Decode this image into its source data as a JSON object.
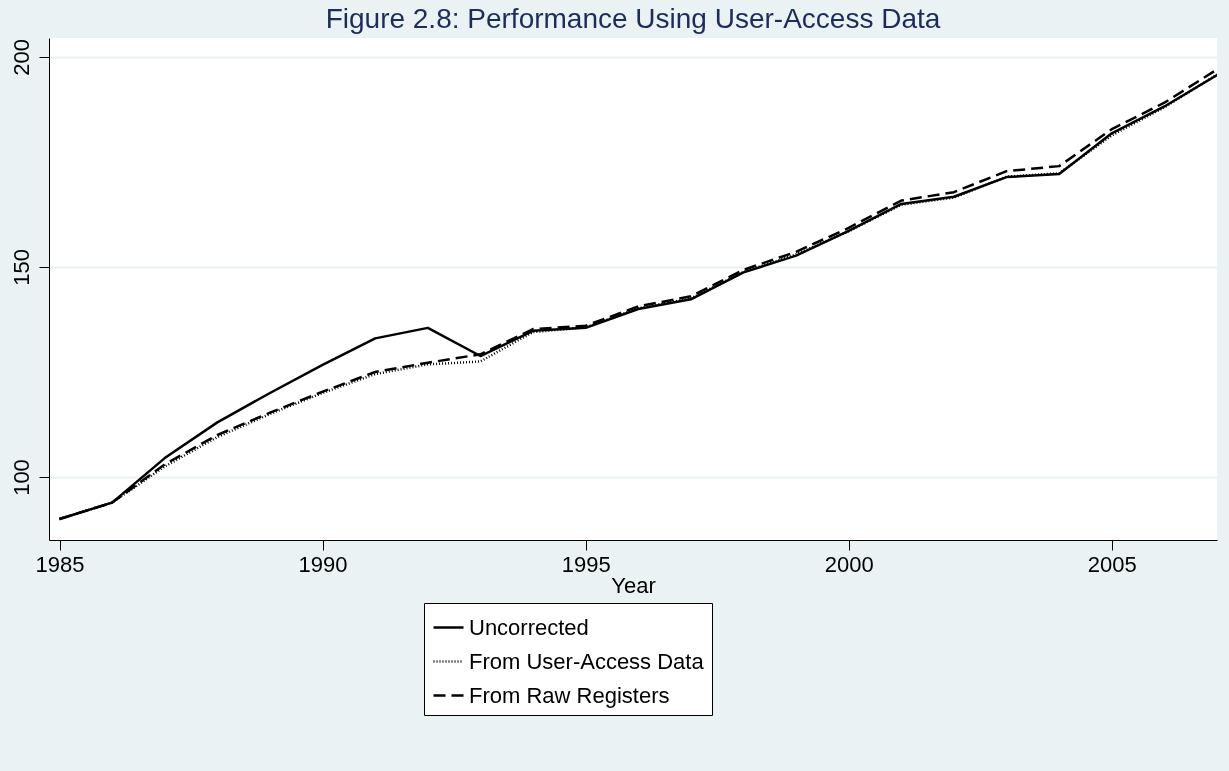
{
  "chart_data": {
    "type": "line",
    "title": "Figure 2.8: Performance Using User-Access Data",
    "xlabel": "Year",
    "x": [
      1985,
      1986,
      1987,
      1988,
      1989,
      1990,
      1991,
      1992,
      1993,
      1994,
      1995,
      1996,
      1997,
      1998,
      1999,
      2000,
      2001,
      2002,
      2003,
      2004,
      2005,
      2006,
      2007
    ],
    "series": [
      {
        "name": "Uncorrected",
        "color": "#000000",
        "line_style": "solid",
        "values": [
          90,
          93.9,
          104.5,
          113,
          120,
          126.7,
          133,
          135.5,
          128.8,
          134.8,
          135.5,
          140,
          142.3,
          148.7,
          152.7,
          158.6,
          165,
          166.7,
          171.4,
          172.1,
          181.8,
          188.2,
          195.7
        ]
      },
      {
        "name": "From User-Access Data",
        "color": "#000000",
        "line_style": "dotted",
        "values": [
          90,
          93.9,
          102.5,
          109.5,
          115,
          120,
          124.5,
          126.8,
          127.5,
          134.5,
          135.6,
          140.2,
          142.5,
          148.8,
          153,
          158.5,
          164.8,
          166.5,
          171.5,
          172.3,
          181.3,
          188,
          195.8
        ]
      },
      {
        "name": "From Raw Registers",
        "color": "#000000",
        "line_style": "dashed",
        "values": [
          90,
          93.9,
          103,
          110,
          115.3,
          120.3,
          125,
          127.2,
          129.2,
          135.2,
          136,
          140.6,
          143,
          149.3,
          153.6,
          159.3,
          165.8,
          167.8,
          172.8,
          174,
          182.8,
          189.1,
          197
        ]
      }
    ],
    "xlim": [
      1984.8,
      2007
    ],
    "xticks": [
      1985,
      1990,
      1995,
      2000,
      2005
    ],
    "ylim": [
      85,
      204.5
    ],
    "yticks": [
      100,
      150,
      200
    ],
    "grid": "y",
    "legend": "bottom"
  }
}
